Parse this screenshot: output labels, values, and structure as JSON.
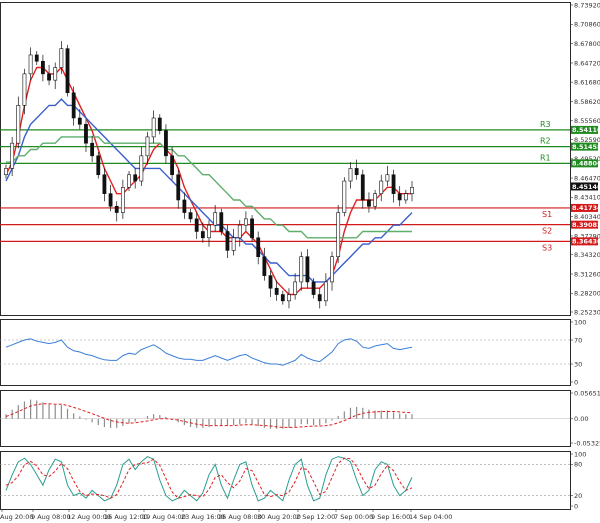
{
  "chart_data": {
    "type": "candlestick",
    "instrument_window": "H4 price chart with indicator sub-panels",
    "price_axis_ticks": [
      "8.73920",
      "8.70860",
      "8.67800",
      "8.64720",
      "8.61680",
      "8.58620",
      "8.55560",
      "8.52590",
      "8.49520",
      "8.46470",
      "8.43410",
      "8.40340",
      "8.37290",
      "8.34320",
      "8.31260",
      "8.28200",
      "8.25230"
    ],
    "ylim": [
      8.2523,
      8.7392
    ],
    "current_price": {
      "label": "8.45140",
      "value": 8.4514
    },
    "resistance_levels": [
      {
        "name": "R3",
        "label": "8.54110",
        "value": 8.5411
      },
      {
        "name": "R2",
        "label": "8.51458",
        "value": 8.51458
      },
      {
        "name": "R1",
        "label": "8.48806",
        "value": 8.48806
      }
    ],
    "support_levels": [
      {
        "name": "S1",
        "label": "8.41734",
        "value": 8.41734
      },
      {
        "name": "S2",
        "label": "8.39082",
        "value": 8.39082
      },
      {
        "name": "S3",
        "label": "8.36430",
        "value": 8.3643
      }
    ],
    "x_tick_labels": [
      "Aug 20:00",
      "9 Aug 08:00",
      "12 Aug 00:00",
      "16 Aug 12:00",
      "19 Aug 04:00",
      "23 Aug 16:00",
      "26 Aug 08:00",
      "30 Aug 20:00",
      "2 Sep 12:00",
      "7 Sep 00:00",
      "9 Sep 16:00",
      "14 Sep 04:00"
    ],
    "closes": [
      8.48,
      8.52,
      8.58,
      8.63,
      8.66,
      8.65,
      8.63,
      8.62,
      8.64,
      8.67,
      8.6,
      8.56,
      8.55,
      8.52,
      8.5,
      8.47,
      8.44,
      8.42,
      8.41,
      8.45,
      8.47,
      8.46,
      8.5,
      8.53,
      8.56,
      8.54,
      8.5,
      8.47,
      8.43,
      8.41,
      8.4,
      8.38,
      8.37,
      8.39,
      8.41,
      8.38,
      8.35,
      8.37,
      8.39,
      8.4,
      8.37,
      8.34,
      8.31,
      8.29,
      8.28,
      8.27,
      8.28,
      8.3,
      8.34,
      8.3,
      8.28,
      8.27,
      8.3,
      8.34,
      8.41,
      8.46,
      8.48,
      8.47,
      8.43,
      8.42,
      8.44,
      8.46,
      8.47,
      8.44,
      8.43,
      8.44,
      8.45
    ],
    "moving_averages": [
      {
        "color": "#e02020",
        "values": [
          8.47,
          8.49,
          8.53,
          8.58,
          8.62,
          8.64,
          8.64,
          8.63,
          8.63,
          8.64,
          8.62,
          8.6,
          8.58,
          8.56,
          8.54,
          8.51,
          8.48,
          8.46,
          8.44,
          8.44,
          8.45,
          8.46,
          8.47,
          8.49,
          8.51,
          8.52,
          8.51,
          8.5,
          8.48,
          8.45,
          8.43,
          8.41,
          8.39,
          8.38,
          8.38,
          8.38,
          8.37,
          8.37,
          8.37,
          8.38,
          8.37,
          8.36,
          8.34,
          8.32,
          8.3,
          8.29,
          8.28,
          8.28,
          8.29,
          8.29,
          8.29,
          8.29,
          8.3,
          8.31,
          8.34,
          8.38,
          8.41,
          8.43,
          8.43,
          8.43,
          8.43,
          8.44,
          8.45,
          8.45,
          8.44,
          8.44,
          8.44
        ]
      },
      {
        "color": "#3a5fcd",
        "values": [
          8.46,
          8.48,
          8.5,
          8.53,
          8.55,
          8.56,
          8.57,
          8.58,
          8.58,
          8.59,
          8.58,
          8.58,
          8.57,
          8.56,
          8.55,
          8.54,
          8.53,
          8.52,
          8.51,
          8.5,
          8.49,
          8.48,
          8.48,
          8.48,
          8.48,
          8.48,
          8.47,
          8.46,
          8.45,
          8.44,
          8.43,
          8.42,
          8.41,
          8.4,
          8.39,
          8.39,
          8.38,
          8.37,
          8.37,
          8.36,
          8.36,
          8.35,
          8.34,
          8.33,
          8.33,
          8.32,
          8.31,
          8.31,
          8.31,
          8.31,
          8.3,
          8.3,
          8.3,
          8.31,
          8.32,
          8.33,
          8.34,
          8.35,
          8.36,
          8.36,
          8.37,
          8.37,
          8.38,
          8.39,
          8.39,
          8.4,
          8.41
        ]
      },
      {
        "color": "#5fae6c",
        "values": [
          8.49,
          8.49,
          8.5,
          8.5,
          8.51,
          8.51,
          8.52,
          8.52,
          8.52,
          8.53,
          8.53,
          8.53,
          8.53,
          8.53,
          8.53,
          8.53,
          8.52,
          8.52,
          8.52,
          8.52,
          8.52,
          8.52,
          8.52,
          8.52,
          8.52,
          8.52,
          8.51,
          8.51,
          8.5,
          8.5,
          8.49,
          8.48,
          8.47,
          8.47,
          8.46,
          8.45,
          8.44,
          8.43,
          8.43,
          8.42,
          8.42,
          8.41,
          8.4,
          8.4,
          8.39,
          8.39,
          8.38,
          8.38,
          8.38,
          8.37,
          8.37,
          8.37,
          8.37,
          8.37,
          8.37,
          8.37,
          8.37,
          8.37,
          8.38,
          8.38,
          8.38,
          8.38,
          8.38,
          8.38,
          8.38,
          8.38,
          8.38
        ]
      }
    ],
    "rsi": {
      "ticks": [
        "100",
        "70",
        "30",
        "0"
      ],
      "ylim": [
        0,
        100
      ],
      "values": [
        58,
        62,
        66,
        70,
        72,
        68,
        66,
        64,
        66,
        70,
        58,
        52,
        50,
        46,
        44,
        40,
        37,
        36,
        36,
        44,
        48,
        46,
        54,
        58,
        62,
        56,
        48,
        44,
        40,
        38,
        38,
        36,
        36,
        40,
        44,
        40,
        36,
        40,
        44,
        46,
        40,
        36,
        32,
        30,
        30,
        28,
        32,
        36,
        46,
        40,
        36,
        34,
        42,
        50,
        64,
        70,
        72,
        68,
        58,
        56,
        60,
        62,
        64,
        56,
        54,
        56,
        58
      ]
    },
    "macd": {
      "ticks": [
        "0.056512",
        "0.00",
        "-0.053257"
      ],
      "ylim": [
        -0.053257,
        0.056512
      ],
      "histogram": [
        0.01,
        0.02,
        0.03,
        0.038,
        0.042,
        0.04,
        0.036,
        0.032,
        0.03,
        0.03,
        0.022,
        0.012,
        0.005,
        -0.002,
        -0.008,
        -0.014,
        -0.018,
        -0.02,
        -0.02,
        -0.016,
        -0.01,
        -0.006,
        0.0,
        0.006,
        0.01,
        0.008,
        0.004,
        -0.002,
        -0.008,
        -0.014,
        -0.018,
        -0.02,
        -0.02,
        -0.018,
        -0.015,
        -0.015,
        -0.016,
        -0.014,
        -0.012,
        -0.01,
        -0.012,
        -0.016,
        -0.02,
        -0.022,
        -0.022,
        -0.022,
        -0.02,
        -0.018,
        -0.012,
        -0.012,
        -0.014,
        -0.014,
        -0.01,
        -0.004,
        0.006,
        0.016,
        0.024,
        0.026,
        0.024,
        0.02,
        0.018,
        0.018,
        0.018,
        0.014,
        0.012,
        0.01,
        0.01
      ],
      "signal": [
        0.005,
        0.01,
        0.016,
        0.022,
        0.028,
        0.031,
        0.033,
        0.033,
        0.032,
        0.032,
        0.029,
        0.025,
        0.021,
        0.016,
        0.011,
        0.006,
        0.001,
        -0.004,
        -0.007,
        -0.009,
        -0.01,
        -0.009,
        -0.007,
        -0.005,
        -0.002,
        0.0,
        0.0,
        -0.001,
        -0.003,
        -0.006,
        -0.009,
        -0.012,
        -0.014,
        -0.015,
        -0.015,
        -0.015,
        -0.015,
        -0.015,
        -0.014,
        -0.013,
        -0.013,
        -0.014,
        -0.015,
        -0.016,
        -0.018,
        -0.019,
        -0.019,
        -0.019,
        -0.018,
        -0.017,
        -0.016,
        -0.016,
        -0.015,
        -0.013,
        -0.009,
        -0.004,
        0.002,
        0.008,
        0.012,
        0.014,
        0.015,
        0.016,
        0.016,
        0.016,
        0.015,
        0.014,
        0.013
      ]
    },
    "stochastic": {
      "ticks": [
        "100",
        "80",
        "20",
        "0"
      ],
      "ylim": [
        0,
        100
      ],
      "k": [
        30,
        60,
        85,
        92,
        80,
        60,
        40,
        70,
        90,
        85,
        40,
        20,
        25,
        15,
        30,
        20,
        10,
        15,
        40,
        80,
        90,
        70,
        85,
        95,
        90,
        50,
        20,
        10,
        15,
        30,
        20,
        10,
        25,
        60,
        80,
        40,
        15,
        50,
        80,
        85,
        40,
        10,
        15,
        30,
        20,
        10,
        50,
        80,
        90,
        40,
        10,
        15,
        60,
        90,
        95,
        92,
        85,
        50,
        20,
        30,
        70,
        85,
        80,
        40,
        20,
        30,
        55
      ],
      "d": [
        40,
        45,
        58,
        79,
        86,
        77,
        60,
        57,
        67,
        82,
        72,
        48,
        28,
        20,
        23,
        22,
        20,
        15,
        22,
        45,
        70,
        80,
        82,
        83,
        90,
        78,
        53,
        27,
        15,
        18,
        22,
        20,
        18,
        32,
        55,
        60,
        45,
        35,
        48,
        72,
        68,
        45,
        22,
        18,
        22,
        20,
        27,
        47,
        73,
        70,
        47,
        22,
        28,
        55,
        82,
        92,
        91,
        76,
        52,
        33,
        40,
        62,
        78,
        68,
        47,
        30,
        35
      ]
    }
  }
}
